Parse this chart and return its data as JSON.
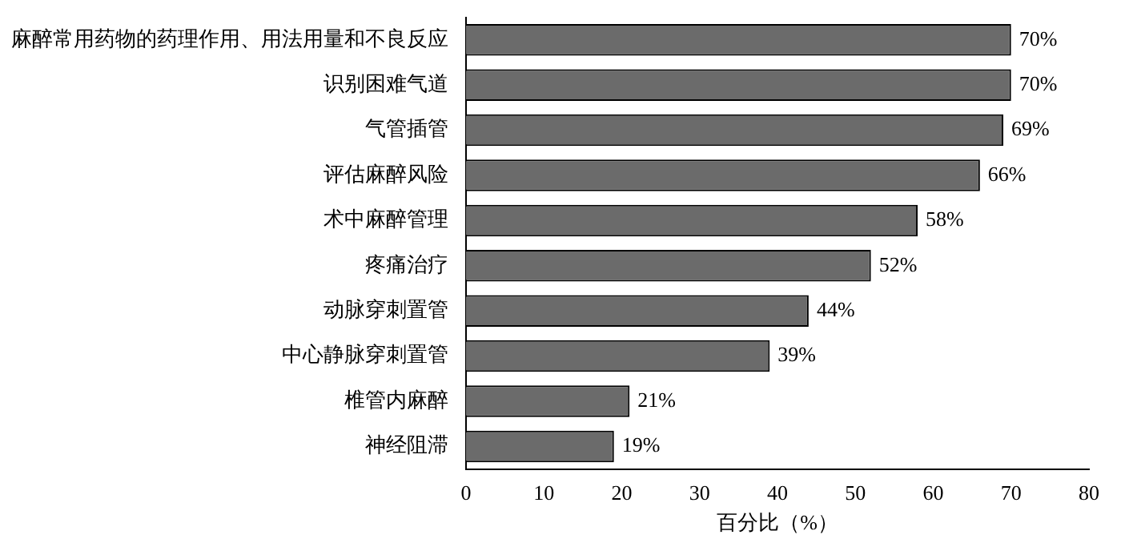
{
  "chart_data": {
    "type": "bar",
    "orientation": "horizontal",
    "xlabel": "百分比（%）",
    "categories": [
      "麻醉常用药物的药理作用、用法用量和不良反应",
      "识别困难气道",
      "气管插管",
      "评估麻醉风险",
      "术中麻醉管理",
      "疼痛治疗",
      "动脉穿刺置管",
      "中心静脉穿刺置管",
      "椎管内麻醉",
      "神经阻滞"
    ],
    "values": [
      70,
      70,
      69,
      66,
      58,
      52,
      44,
      39,
      21,
      19
    ],
    "color": "#6b6b6b",
    "xlim": [
      0,
      80
    ],
    "xticks": [
      0,
      10,
      20,
      30,
      40,
      50,
      60,
      70,
      80
    ],
    "value_labels": [
      "70%",
      "70%",
      "69%",
      "66%",
      "58%",
      "52%",
      "44%",
      "39%",
      "21%",
      "19%"
    ],
    "grid": false,
    "legend": false
  }
}
